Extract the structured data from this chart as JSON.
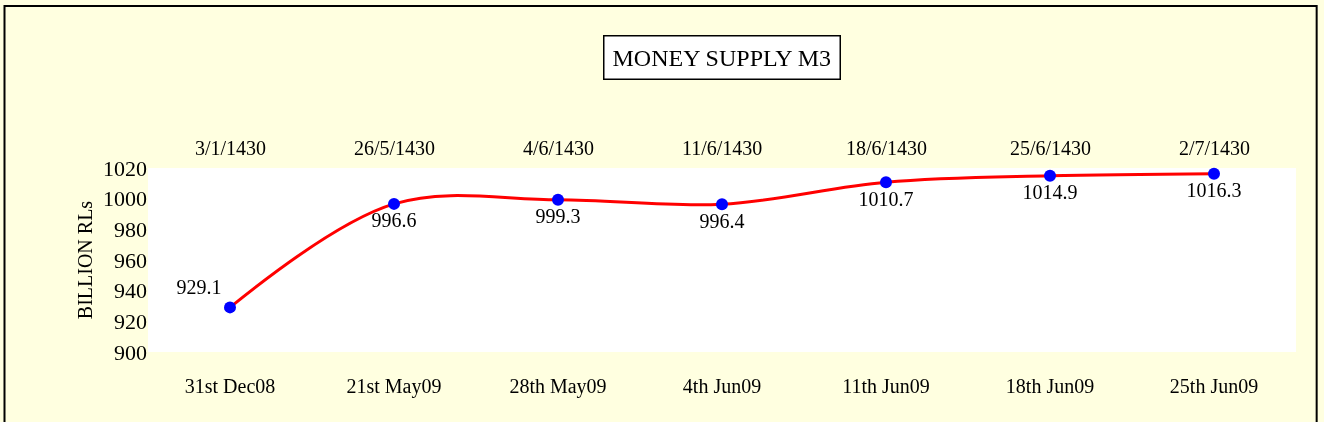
{
  "chart_data": {
    "type": "line",
    "title": "MONEY SUPPLY M3",
    "ylabel": "BILLION RLs",
    "categories": [
      "31st Dec08",
      "21st May09",
      "28th May09",
      "4th Jun09",
      "11th Jun09",
      "18th Jun09",
      "25th Jun09"
    ],
    "series": [
      {
        "color": "#ff0000",
        "colors": [
          "#0000ff",
          "#0000ff",
          "#0000ff",
          "#0000ff",
          "#0000ff",
          "#0000ff",
          "#0000ff"
        ],
        "values": [
          929.1,
          996.6,
          999.3,
          996.4,
          1010.7,
          1014.9,
          1016.3
        ]
      }
    ],
    "annotations": [
      "3/1/1430",
      "26/5/1430",
      "4/6/1430",
      "11/6/1430",
      "18/6/1430",
      "25/6/1430",
      "2/7/1430"
    ],
    "ylim": [
      900,
      1020
    ],
    "yticks": [
      900,
      920,
      940,
      960,
      980,
      1000,
      1020
    ],
    "marker": "circle",
    "line_style": "solid",
    "data_labels": true
  }
}
